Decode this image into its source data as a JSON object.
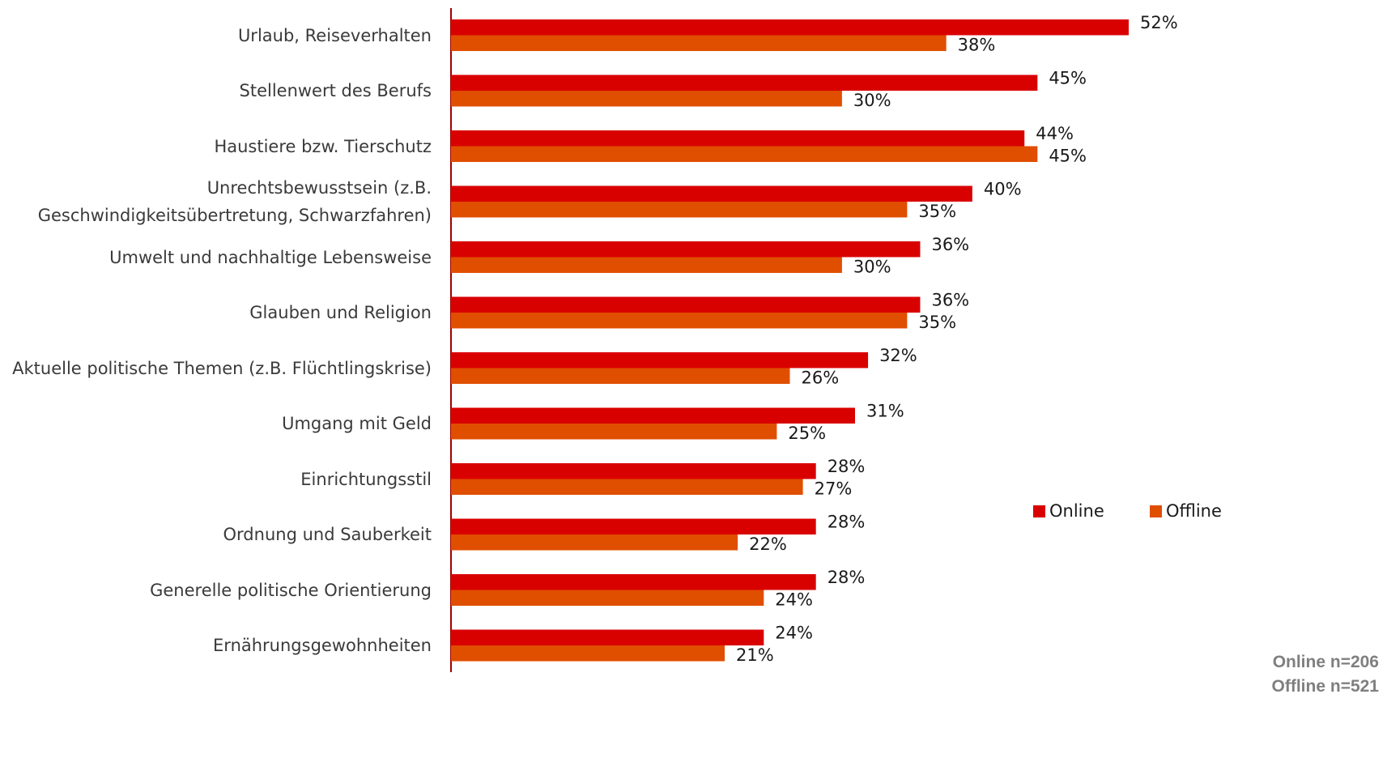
{
  "chart_data": {
    "type": "hbar",
    "categories": [
      "Urlaub, Reiseverhalten",
      "Stellenwert des Berufs",
      "Haustiere bzw. Tierschutz",
      "Unrechtsbewusstsein (z.B.\nGeschwindigkeitsübertretung, Schwarzfahren)",
      "Umwelt und nachhaltige Lebensweise",
      "Glauben und Religion",
      "Aktuelle politische Themen (z.B. Flüchtlingskrise)",
      "Umgang mit Geld",
      "Einrichtungsstil",
      "Ordnung und Sauberkeit",
      "Generelle politische Orientierung",
      "Ernährungsgewohnheiten"
    ],
    "series": [
      {
        "name": "Online",
        "color": "#d90000",
        "values": [
          52,
          45,
          44,
          40,
          36,
          36,
          32,
          31,
          28,
          28,
          28,
          24
        ],
        "value_labels": [
          "52%",
          "45%",
          "44%",
          "40%",
          "36%",
          "36%",
          "32%",
          "31%",
          "28%",
          "28%",
          "28%",
          "24%"
        ]
      },
      {
        "name": "Offline",
        "color": "#e04e00",
        "values": [
          38,
          30,
          45,
          35,
          30,
          35,
          26,
          25,
          27,
          22,
          24,
          21
        ],
        "value_labels": [
          "38%",
          "30%",
          "45%",
          "35%",
          "30%",
          "35%",
          "26%",
          "25%",
          "27%",
          "22%",
          "24%",
          "21%"
        ]
      }
    ],
    "xlim": [
      0,
      52
    ],
    "legend": "right",
    "annotations": [
      "Online n=206",
      "Offline n=521"
    ]
  }
}
